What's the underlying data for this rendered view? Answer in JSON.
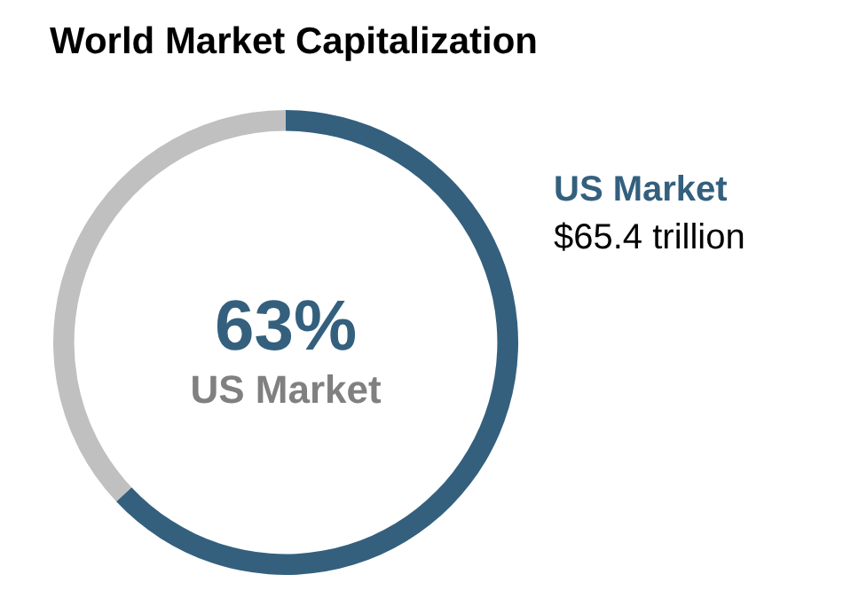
{
  "chart_data": {
    "type": "donut",
    "title": "World Market Capitalization",
    "categories": [
      "US Market",
      null
    ],
    "values": [
      63,
      37
    ],
    "colors": [
      "#34607e",
      "#c0c0c0"
    ],
    "value_labels": [
      "63%",
      null
    ],
    "annotations": [
      "$65.4 trillion"
    ]
  }
}
